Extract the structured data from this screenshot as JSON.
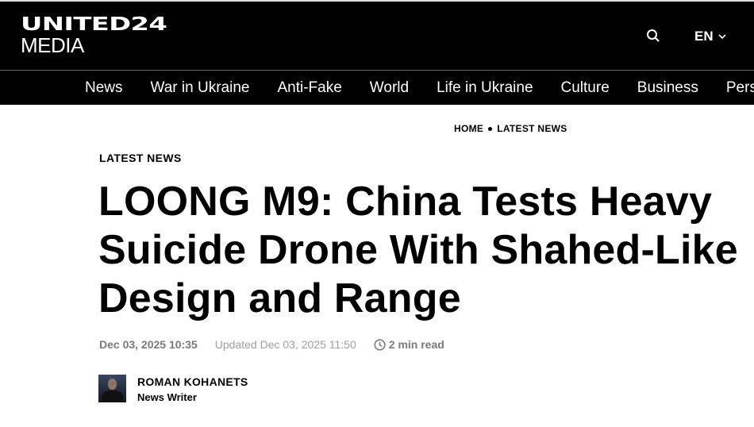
{
  "header": {
    "logo_line1": "UNITED24",
    "logo_line2": "MEDIA",
    "search_icon": "search-icon",
    "language": "EN"
  },
  "nav": {
    "items": [
      "News",
      "War in Ukraine",
      "Anti-Fake",
      "World",
      "Life in Ukraine",
      "Culture",
      "Business",
      "Personalities"
    ]
  },
  "breadcrumb": {
    "home": "HOME",
    "current": "LATEST NEWS"
  },
  "article": {
    "category": "LATEST NEWS",
    "title": "LOONG M9: China Tests Heavy Suicide Drone With Shahed-Like Design and Range",
    "published": "Dec 03, 2025 10:35",
    "updated": "Updated Dec 03, 2025 11:50",
    "read_time": "2 min read",
    "author": {
      "name": "ROMAN KOHANETS",
      "role": "News Writer"
    }
  }
}
